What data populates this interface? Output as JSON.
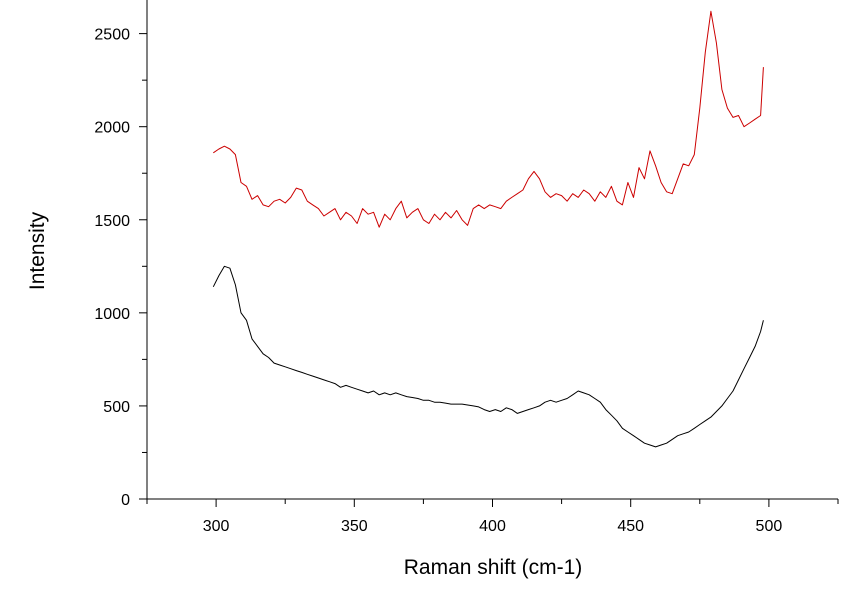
{
  "chart_data": {
    "type": "line",
    "title": "",
    "xlabel": "Raman shift (cm-1)",
    "ylabel": "Intensity",
    "xlim": [
      275,
      525
    ],
    "ylim": [
      0,
      2600
    ],
    "x_ticks": [
      300,
      350,
      400,
      450,
      500
    ],
    "y_ticks": [
      0,
      500,
      1000,
      1500,
      2000,
      2500
    ],
    "grid": false,
    "legend": "none",
    "series": [
      {
        "color": "#cc0000",
        "x": [
          299,
          301,
          303,
          305,
          307,
          309,
          311,
          313,
          315,
          317,
          319,
          321,
          323,
          325,
          327,
          329,
          331,
          333,
          335,
          337,
          339,
          341,
          343,
          345,
          347,
          349,
          351,
          353,
          355,
          357,
          359,
          361,
          363,
          365,
          367,
          369,
          371,
          373,
          375,
          377,
          379,
          381,
          383,
          385,
          387,
          389,
          391,
          393,
          395,
          397,
          399,
          401,
          403,
          405,
          407,
          409,
          411,
          413,
          415,
          417,
          419,
          421,
          423,
          425,
          427,
          429,
          431,
          433,
          435,
          437,
          439,
          441,
          443,
          445,
          447,
          449,
          451,
          453,
          455,
          457,
          459,
          461,
          463,
          465,
          467,
          469,
          471,
          473,
          475,
          477,
          479,
          481,
          483,
          485,
          487,
          489,
          491,
          493,
          495,
          497,
          498
        ],
        "y": [
          1860,
          1880,
          1895,
          1880,
          1850,
          1700,
          1680,
          1610,
          1630,
          1580,
          1570,
          1600,
          1610,
          1590,
          1620,
          1670,
          1660,
          1600,
          1580,
          1560,
          1520,
          1540,
          1560,
          1500,
          1540,
          1520,
          1480,
          1560,
          1530,
          1540,
          1460,
          1530,
          1500,
          1560,
          1600,
          1510,
          1540,
          1560,
          1500,
          1480,
          1530,
          1500,
          1540,
          1510,
          1550,
          1500,
          1470,
          1560,
          1580,
          1560,
          1580,
          1570,
          1560,
          1600,
          1620,
          1640,
          1660,
          1720,
          1760,
          1720,
          1650,
          1620,
          1640,
          1630,
          1600,
          1640,
          1620,
          1660,
          1640,
          1600,
          1650,
          1620,
          1680,
          1600,
          1580,
          1700,
          1620,
          1780,
          1720,
          1870,
          1790,
          1700,
          1650,
          1640,
          1720,
          1800,
          1790,
          1850,
          2100,
          2400,
          2620,
          2450,
          2200,
          2100,
          2050,
          2060,
          2000,
          2020,
          2040,
          2060,
          2320
        ]
      },
      {
        "color": "#000000",
        "x": [
          299,
          301,
          303,
          305,
          307,
          309,
          311,
          313,
          315,
          317,
          319,
          321,
          323,
          325,
          327,
          329,
          331,
          333,
          335,
          337,
          339,
          341,
          343,
          345,
          347,
          349,
          351,
          353,
          355,
          357,
          359,
          361,
          363,
          365,
          367,
          369,
          371,
          373,
          375,
          377,
          379,
          381,
          383,
          385,
          387,
          389,
          391,
          393,
          395,
          397,
          399,
          401,
          403,
          405,
          407,
          409,
          411,
          413,
          415,
          417,
          419,
          421,
          423,
          425,
          427,
          429,
          431,
          433,
          435,
          437,
          439,
          441,
          443,
          445,
          447,
          449,
          451,
          453,
          455,
          457,
          459,
          461,
          463,
          465,
          467,
          469,
          471,
          473,
          475,
          477,
          479,
          481,
          483,
          485,
          487,
          489,
          491,
          493,
          495,
          497,
          498
        ],
        "y": [
          1140,
          1200,
          1250,
          1240,
          1150,
          1000,
          960,
          860,
          820,
          780,
          760,
          730,
          720,
          710,
          700,
          690,
          680,
          670,
          660,
          650,
          640,
          630,
          620,
          600,
          610,
          600,
          590,
          580,
          570,
          580,
          560,
          570,
          560,
          570,
          560,
          550,
          545,
          540,
          530,
          530,
          520,
          520,
          515,
          510,
          510,
          510,
          505,
          500,
          495,
          480,
          470,
          480,
          470,
          490,
          480,
          460,
          470,
          480,
          490,
          500,
          520,
          530,
          520,
          530,
          540,
          560,
          580,
          570,
          560,
          540,
          520,
          480,
          450,
          420,
          380,
          360,
          340,
          320,
          300,
          290,
          280,
          290,
          300,
          320,
          340,
          350,
          360,
          380,
          400,
          420,
          440,
          470,
          500,
          540,
          580,
          640,
          700,
          760,
          820,
          900,
          960
        ]
      }
    ]
  }
}
